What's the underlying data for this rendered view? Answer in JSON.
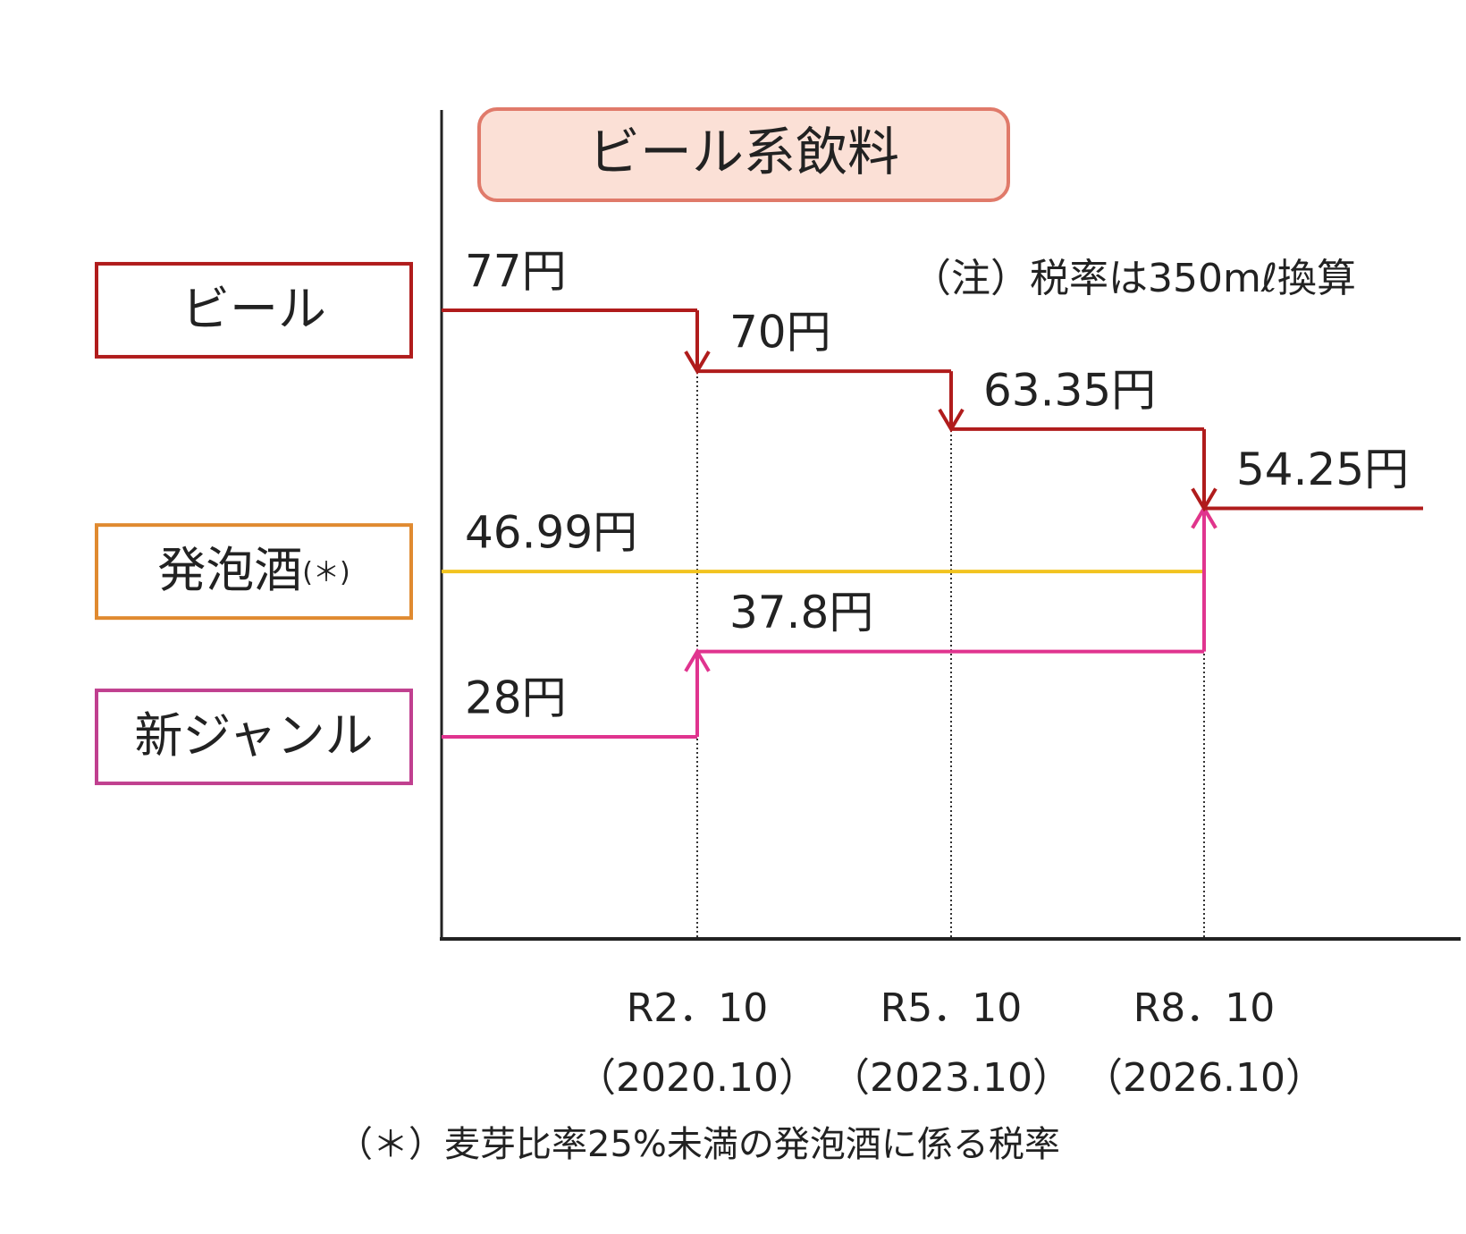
{
  "chart_data": {
    "type": "step",
    "title": "ビール系飲料",
    "note": "（注）税率は350mℓ換算",
    "footnote": "（＊）麦芽比率25%未満の発泡酒に係る税率",
    "categories": [
      null,
      "R2．10",
      "R5．10",
      "R8．10"
    ],
    "category_sublabels": [
      null,
      "（2020.10）",
      "（2023.10）",
      "（2026.10）"
    ],
    "ylim": [
      5,
      100
    ],
    "series": [
      {
        "name": "発泡酒",
        "name_suffix": "(＊)",
        "color": "#f2c31f",
        "legend_color": "#e08a30",
        "values": [
          46.99,
          46.99,
          46.99,
          54.25
        ],
        "value_labels": [
          "46.99円",
          null,
          null,
          null
        ]
      },
      {
        "name": "新ジャンル",
        "color": "#e0348f",
        "legend_color": "#c03f8f",
        "values": [
          28,
          37.8,
          37.8,
          54.25
        ],
        "value_labels": [
          "28円",
          "37.8円",
          null,
          null
        ]
      },
      {
        "name": "ビール",
        "color": "#b01c1c",
        "legend_color": "#b01c1c",
        "values": [
          77,
          70,
          63.35,
          54.25
        ],
        "value_labels": [
          "77円",
          "70円",
          "63.35円",
          "54.25円"
        ]
      }
    ]
  }
}
